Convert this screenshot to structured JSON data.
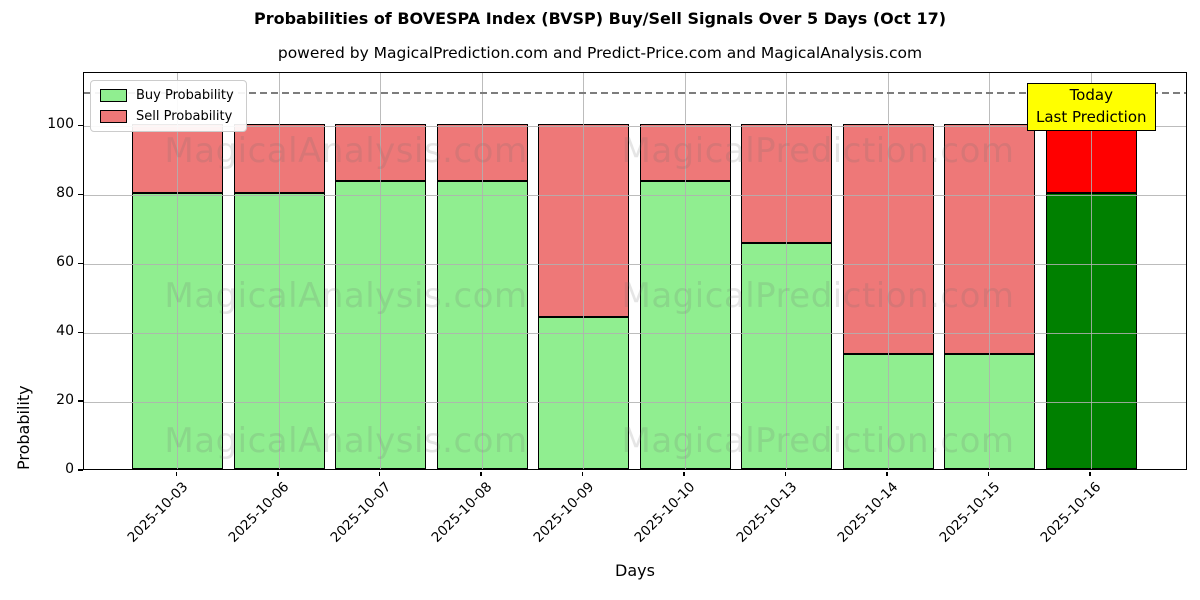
{
  "figure": {
    "title": "Probabilities of BOVESPA Index (BVSP) Buy/Sell Signals Over 5 Days (Oct 17)",
    "subtitle": "powered by MagicalPrediction.com and Predict-Price.com and MagicalAnalysis.com"
  },
  "chart_data": {
    "type": "bar",
    "stacked": true,
    "categories": [
      "2025-10-03",
      "2025-10-06",
      "2025-10-07",
      "2025-10-08",
      "2025-10-09",
      "2025-10-10",
      "2025-10-13",
      "2025-10-14",
      "2025-10-15",
      "2025-10-16"
    ],
    "series": [
      {
        "name": "Buy Probability",
        "color": "#90EE90",
        "final_bar_color": "#008000",
        "values": [
          80,
          80,
          83.5,
          83.5,
          44,
          83.5,
          65.5,
          33.3,
          33.5,
          80
        ]
      },
      {
        "name": "Sell Probability",
        "color": "#EE7878",
        "final_bar_color": "#FF0000",
        "values": [
          20,
          20,
          16.5,
          16.5,
          56,
          16.5,
          34.5,
          66.7,
          66.5,
          20
        ]
      }
    ],
    "xlabel": "Days",
    "ylabel": "Probability",
    "ylim": [
      0,
      115.5
    ],
    "yticks": [
      0,
      20,
      40,
      60,
      80,
      100
    ],
    "grid": true,
    "legend_position": "upper-left",
    "bar_edge_color": "#000000",
    "threshold_line": {
      "y": 110,
      "style": "dashed",
      "color": "#7d7d7d"
    },
    "annotation": {
      "lines": [
        "Today",
        "Last Prediction"
      ],
      "bg_color": "#FFFF00",
      "target_category": "2025-10-16"
    },
    "watermarks": {
      "texts": [
        "MagicalAnalysis.com",
        "MagicalPrediction.com"
      ],
      "color": "rgba(110,110,110,0.18)"
    }
  }
}
